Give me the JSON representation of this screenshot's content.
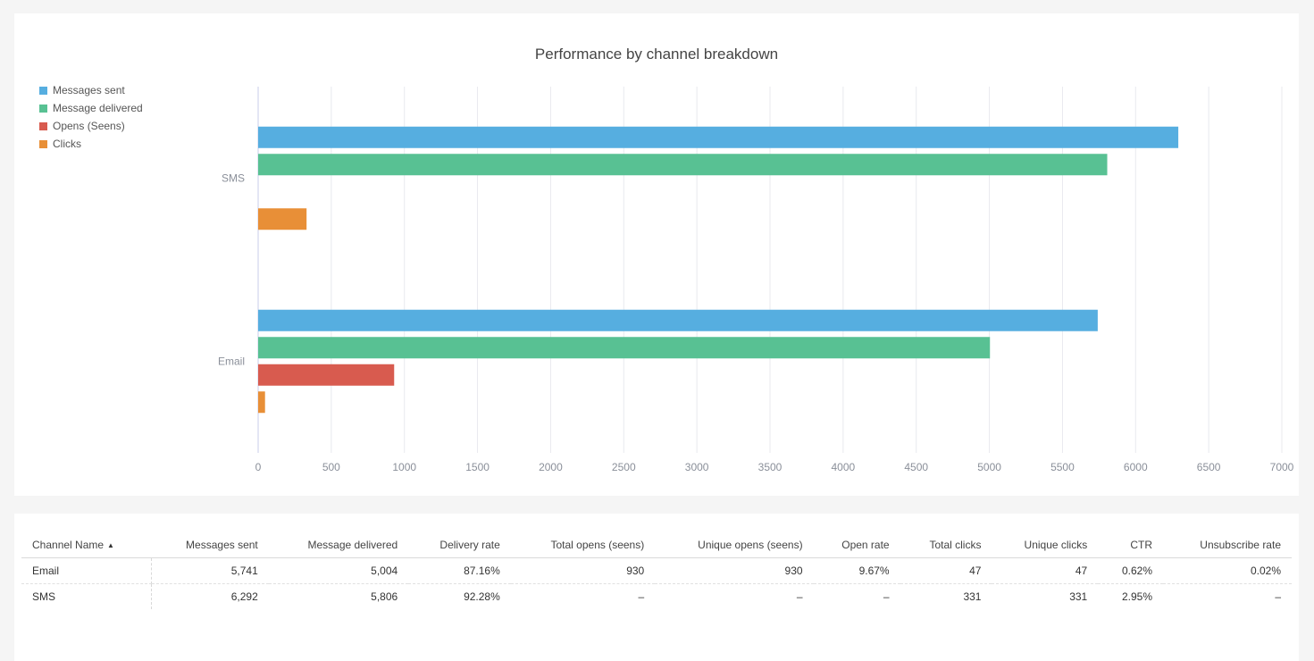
{
  "chart_data": {
    "type": "bar",
    "orientation": "horizontal",
    "title": "Performance by channel breakdown",
    "categories": [
      "SMS",
      "Email"
    ],
    "series": [
      {
        "name": "Messages sent",
        "color": "#56aee0",
        "values": [
          6292,
          5741
        ]
      },
      {
        "name": "Message delivered",
        "color": "#58c193",
        "values": [
          5806,
          5004
        ]
      },
      {
        "name": "Opens (Seens)",
        "color": "#d85b4f",
        "values": [
          0,
          930
        ]
      },
      {
        "name": "Clicks",
        "color": "#e88f37",
        "values": [
          331,
          47
        ]
      }
    ],
    "xlim": [
      0,
      7000
    ],
    "xticks": [
      0,
      500,
      1000,
      1500,
      2000,
      2500,
      3000,
      3500,
      4000,
      4500,
      5000,
      5500,
      6000,
      6500,
      7000
    ],
    "grid": true,
    "legend_position": "top-left"
  },
  "table": {
    "columns": [
      "Channel Name",
      "Messages sent",
      "Message delivered",
      "Delivery rate",
      "Total opens (seens)",
      "Unique opens (seens)",
      "Open rate",
      "Total clicks",
      "Unique clicks",
      "CTR",
      "Unsubscribe rate"
    ],
    "sort_icon": "sort-ascending-icon",
    "rows": [
      [
        "Email",
        "5,741",
        "5,004",
        "87.16%",
        "930",
        "930",
        "9.67%",
        "47",
        "47",
        "0.62%",
        "0.02%"
      ],
      [
        "SMS",
        "6,292",
        "5,806",
        "92.28%",
        "–",
        "–",
        "–",
        "331",
        "331",
        "2.95%",
        "–"
      ]
    ]
  }
}
